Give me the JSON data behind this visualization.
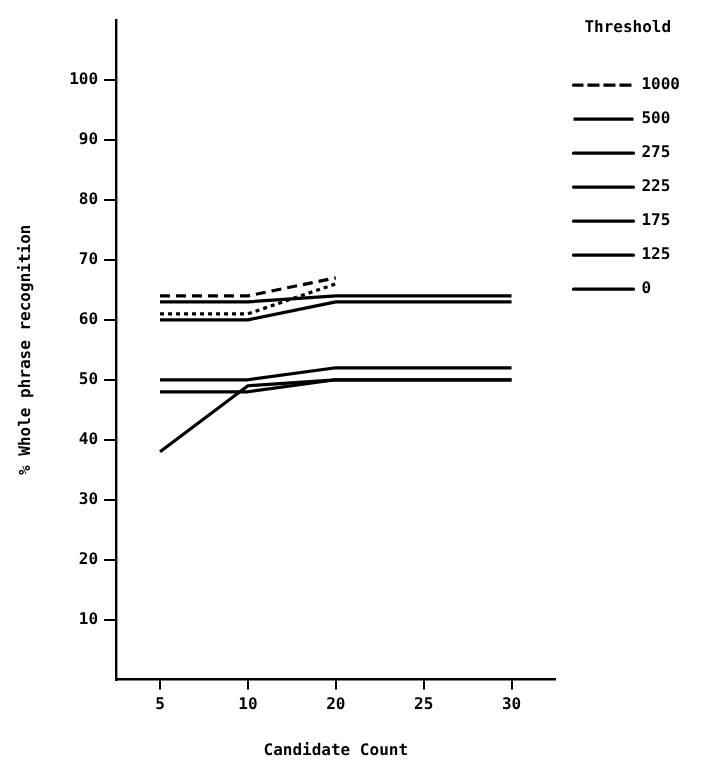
{
  "chart_data": {
    "type": "line",
    "xlabel": "Candidate Count",
    "ylabel": "% Whole phrase recognition",
    "legend_title": "Threshold",
    "categories": [
      "5",
      "10",
      "20",
      "25",
      "30"
    ],
    "series": [
      {
        "name": "1000",
        "color": "#000000",
        "line_style": "dashed",
        "x": [
          "5",
          "10",
          "20"
        ],
        "values": [
          64,
          64,
          67
        ]
      },
      {
        "name": "500",
        "color": "#000000",
        "line_style": "dotted",
        "x": [
          "5",
          "10",
          "20"
        ],
        "values": [
          61,
          61,
          66
        ]
      },
      {
        "name": "275",
        "color": "#000000",
        "line_style": "solid",
        "x": [
          "5",
          "10",
          "20",
          "30"
        ],
        "values": [
          63,
          63,
          64,
          64
        ]
      },
      {
        "name": "225",
        "color": "#000000",
        "line_style": "solid",
        "x": [
          "5",
          "10",
          "20",
          "30"
        ],
        "values": [
          60,
          60,
          63,
          63
        ]
      },
      {
        "name": "175",
        "color": "#000000",
        "line_style": "solid",
        "x": [
          "5",
          "10",
          "20",
          "30"
        ],
        "values": [
          50,
          50,
          52,
          52
        ]
      },
      {
        "name": "125",
        "color": "#000000",
        "line_style": "solid",
        "x": [
          "5",
          "10",
          "20",
          "30"
        ],
        "values": [
          48,
          48,
          50,
          50
        ]
      },
      {
        "name": "0",
        "color": "#000000",
        "line_style": "solid",
        "x": [
          "5",
          "10",
          "20",
          "30"
        ],
        "values": [
          38,
          49,
          50,
          50
        ]
      }
    ],
    "ylim": [
      0,
      110
    ],
    "yticks": [
      10,
      20,
      30,
      40,
      50,
      60,
      70,
      80,
      90,
      100
    ],
    "grid": false,
    "legend": "top right",
    "marker": "none"
  }
}
